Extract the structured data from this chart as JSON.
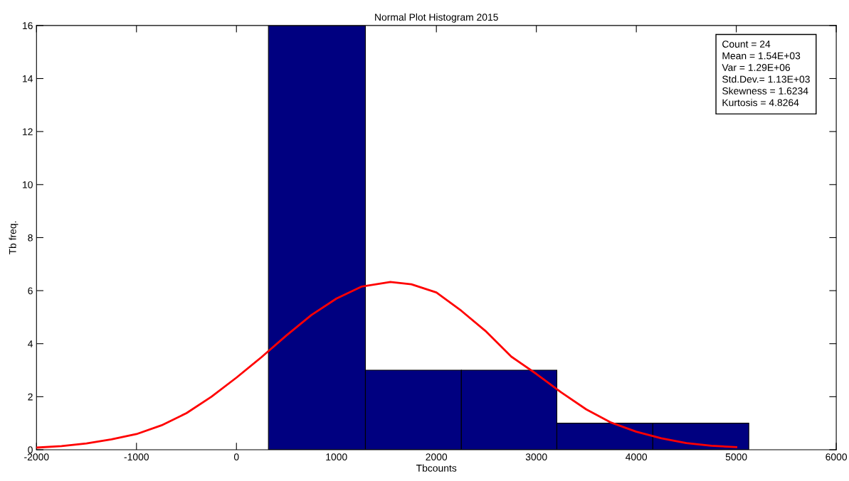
{
  "chart_data": {
    "type": "histogram",
    "title": "Normal Plot Histogram 2015",
    "xlabel": "Tbcounts",
    "ylabel": "Tb freq.",
    "bins": [
      320,
      1290,
      2250,
      3205,
      4165,
      5125
    ],
    "values": [
      16,
      3,
      3,
      1,
      1
    ],
    "color": "#000080",
    "series": [
      {
        "type": "line",
        "color": "#ff0000",
        "x": [
          -2000,
          -1750,
          -1500,
          -1250,
          -1000,
          -750,
          -500,
          -250,
          0,
          250,
          500,
          750,
          1000,
          1250,
          1540,
          1750,
          2000,
          2250,
          2500,
          2750,
          3000,
          3250,
          3500,
          3750,
          4000,
          4250,
          4500,
          4750,
          5000
        ],
        "values": [
          0.08,
          0.14,
          0.24,
          0.39,
          0.59,
          0.92,
          1.38,
          2.0,
          2.72,
          3.49,
          4.31,
          5.08,
          5.7,
          6.15,
          6.33,
          6.24,
          5.93,
          5.24,
          4.45,
          3.51,
          2.86,
          2.16,
          1.52,
          1.02,
          0.68,
          0.43,
          0.25,
          0.15,
          0.1
        ]
      }
    ],
    "xlim": [
      -2000,
      6000
    ],
    "xticks": [
      -2000,
      -1000,
      0,
      1000,
      2000,
      3000,
      4000,
      5000,
      6000
    ],
    "ylim": [
      0,
      16
    ],
    "yticks": [
      0,
      2,
      4,
      6,
      8,
      10,
      12,
      14,
      16
    ],
    "grid": false,
    "legend": false,
    "annotations": [
      "Count = 24",
      "Mean = 1.54E+03",
      "Var = 1.29E+06",
      "Std.Dev.= 1.13E+03",
      "Skewness = 1.6234",
      "Kurtosis = 4.8264"
    ]
  }
}
